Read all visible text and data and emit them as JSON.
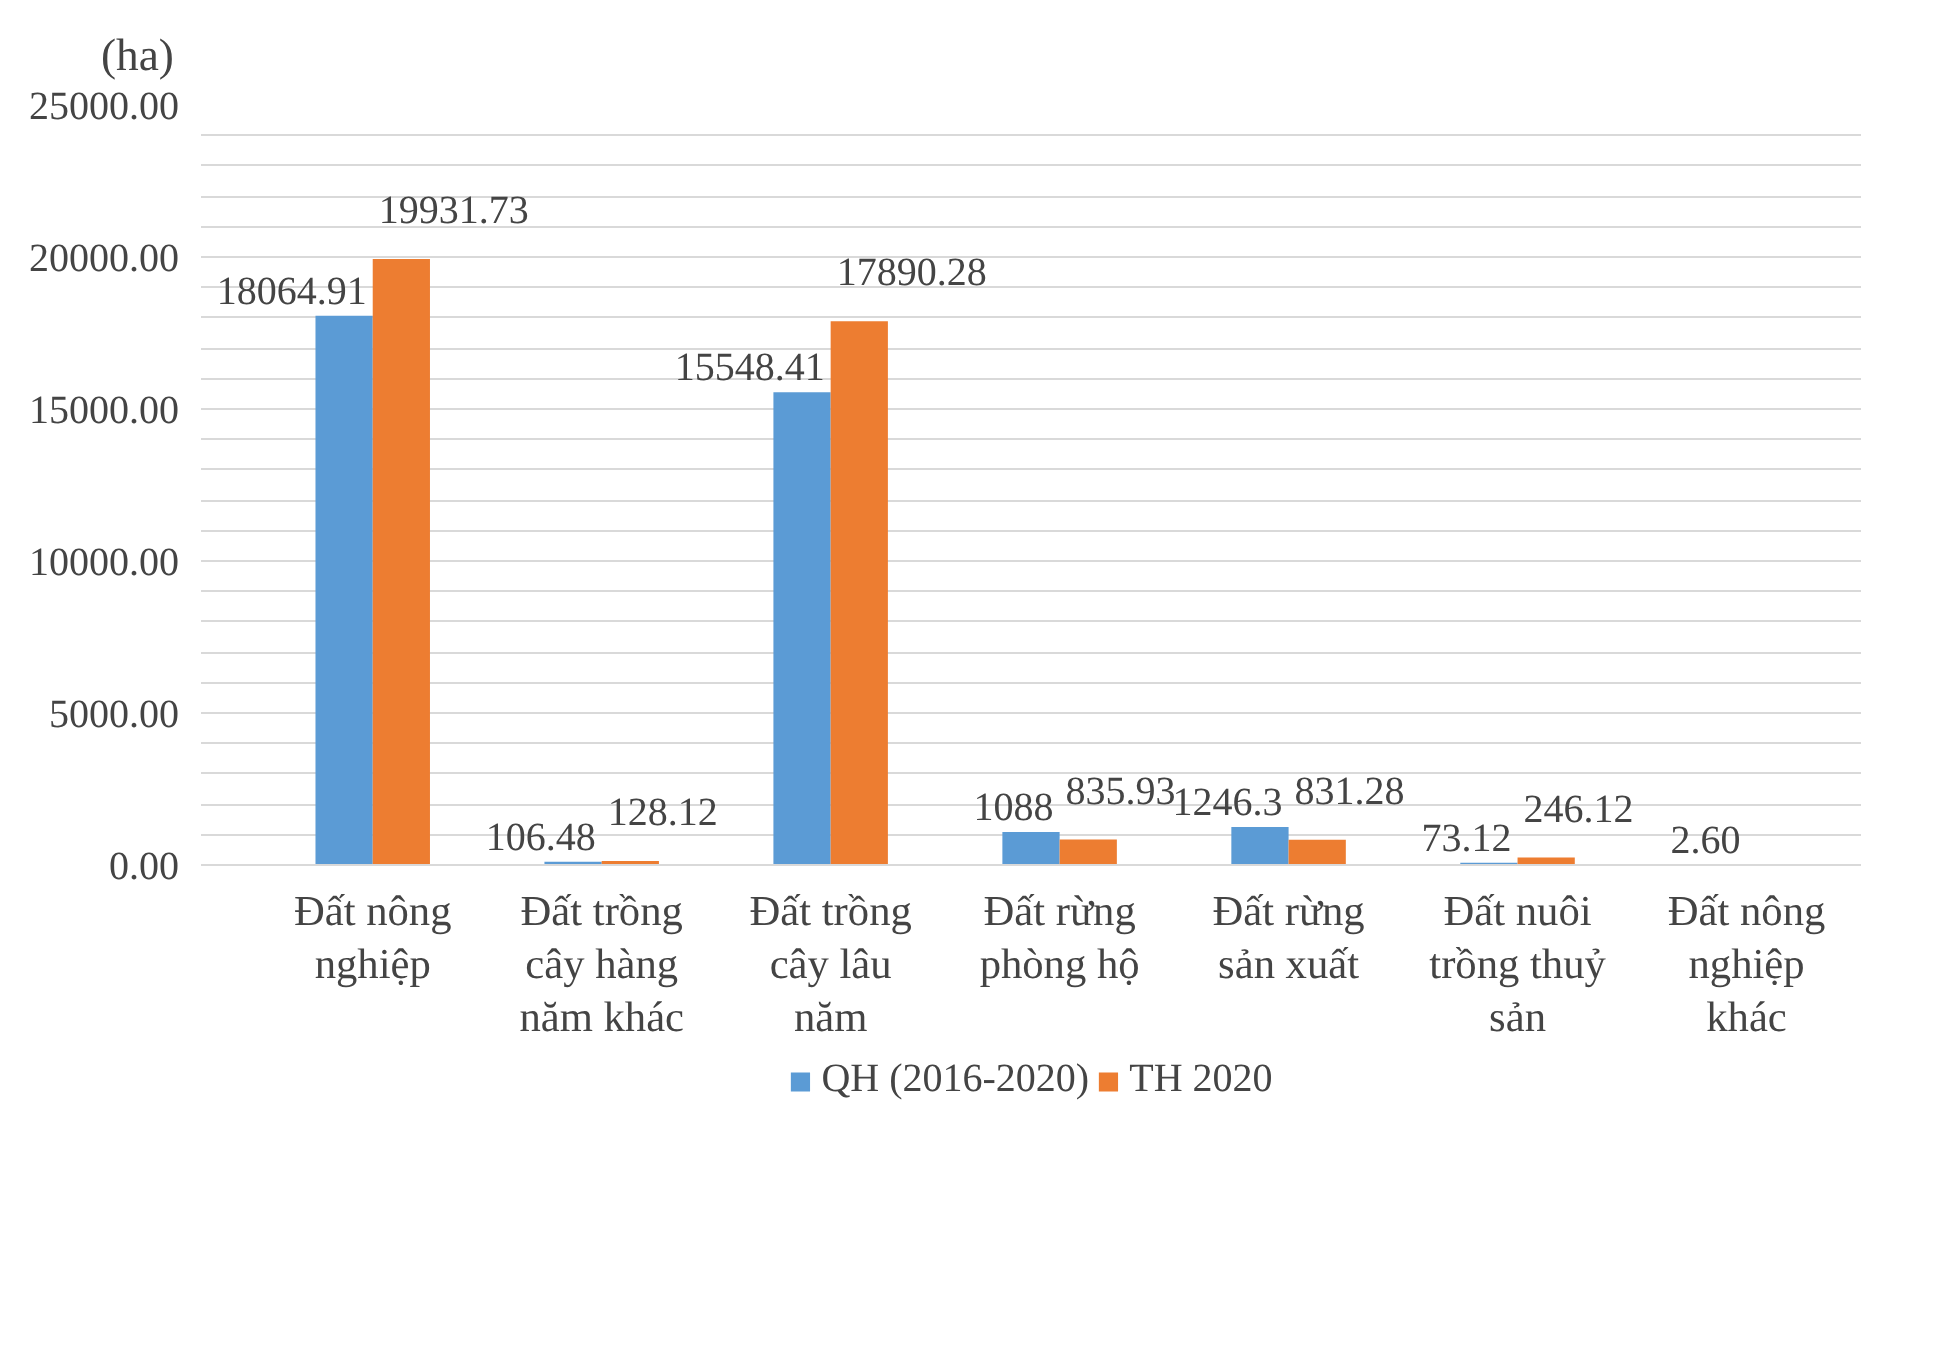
{
  "chart_data": {
    "type": "bar",
    "ylabel": "(ha)",
    "categories": [
      "Đất nông nghiệp",
      "Đất trồng cây hàng năm khác",
      "Đất trồng cây lâu năm",
      "Đất rừng phòng hộ",
      "Đất rừng sản xuất",
      "Đất nuôi trồng thuỷ sản",
      "Đất nông nghiệp khác"
    ],
    "series": [
      {
        "name": "QH (2016-2020)",
        "color": "#5b9bd5",
        "values": [
          18064.91,
          106.48,
          15548.41,
          1088,
          1246.3,
          73.12,
          2.6
        ],
        "value_labels": [
          "18064.91",
          "106.48",
          "15548.41",
          "1088",
          "1246.3",
          "73.12",
          "2.60"
        ]
      },
      {
        "name": "TH 2020",
        "color": "#ed7d31",
        "values": [
          19931.73,
          128.12,
          17890.28,
          835.93,
          831.28,
          246.12,
          null
        ],
        "value_labels": [
          "19931.73",
          "128.12",
          "17890.28",
          "835.93",
          "831.28",
          "246.12",
          null
        ]
      }
    ],
    "ylim": [
      0,
      25000
    ],
    "yticks": [
      {
        "value": 0,
        "label": "0.00"
      },
      {
        "value": 1000,
        "label": null
      },
      {
        "value": 2000,
        "label": null
      },
      {
        "value": 3000,
        "label": null
      },
      {
        "value": 4000,
        "label": null
      },
      {
        "value": 5000,
        "label": "5000.00"
      },
      {
        "value": 6000,
        "label": null
      },
      {
        "value": 7000,
        "label": null
      },
      {
        "value": 8000,
        "label": null
      },
      {
        "value": 9000,
        "label": null
      },
      {
        "value": 10000,
        "label": "10000.00"
      },
      {
        "value": 11000,
        "label": null
      },
      {
        "value": 12000,
        "label": null
      },
      {
        "value": 13000,
        "label": null
      },
      {
        "value": 14000,
        "label": null
      },
      {
        "value": 15000,
        "label": "15000.00"
      },
      {
        "value": 16000,
        "label": null
      },
      {
        "value": 17000,
        "label": null
      },
      {
        "value": 18000,
        "label": null
      },
      {
        "value": 19000,
        "label": null
      },
      {
        "value": 20000,
        "label": "20000.00"
      },
      {
        "value": 21000,
        "label": null
      },
      {
        "value": 22000,
        "label": null
      },
      {
        "value": 23000,
        "label": null
      },
      {
        "value": 24000,
        "label": null
      },
      {
        "value": 25000,
        "label": "25000.00"
      }
    ],
    "grid": "y",
    "legend": "bottom"
  }
}
